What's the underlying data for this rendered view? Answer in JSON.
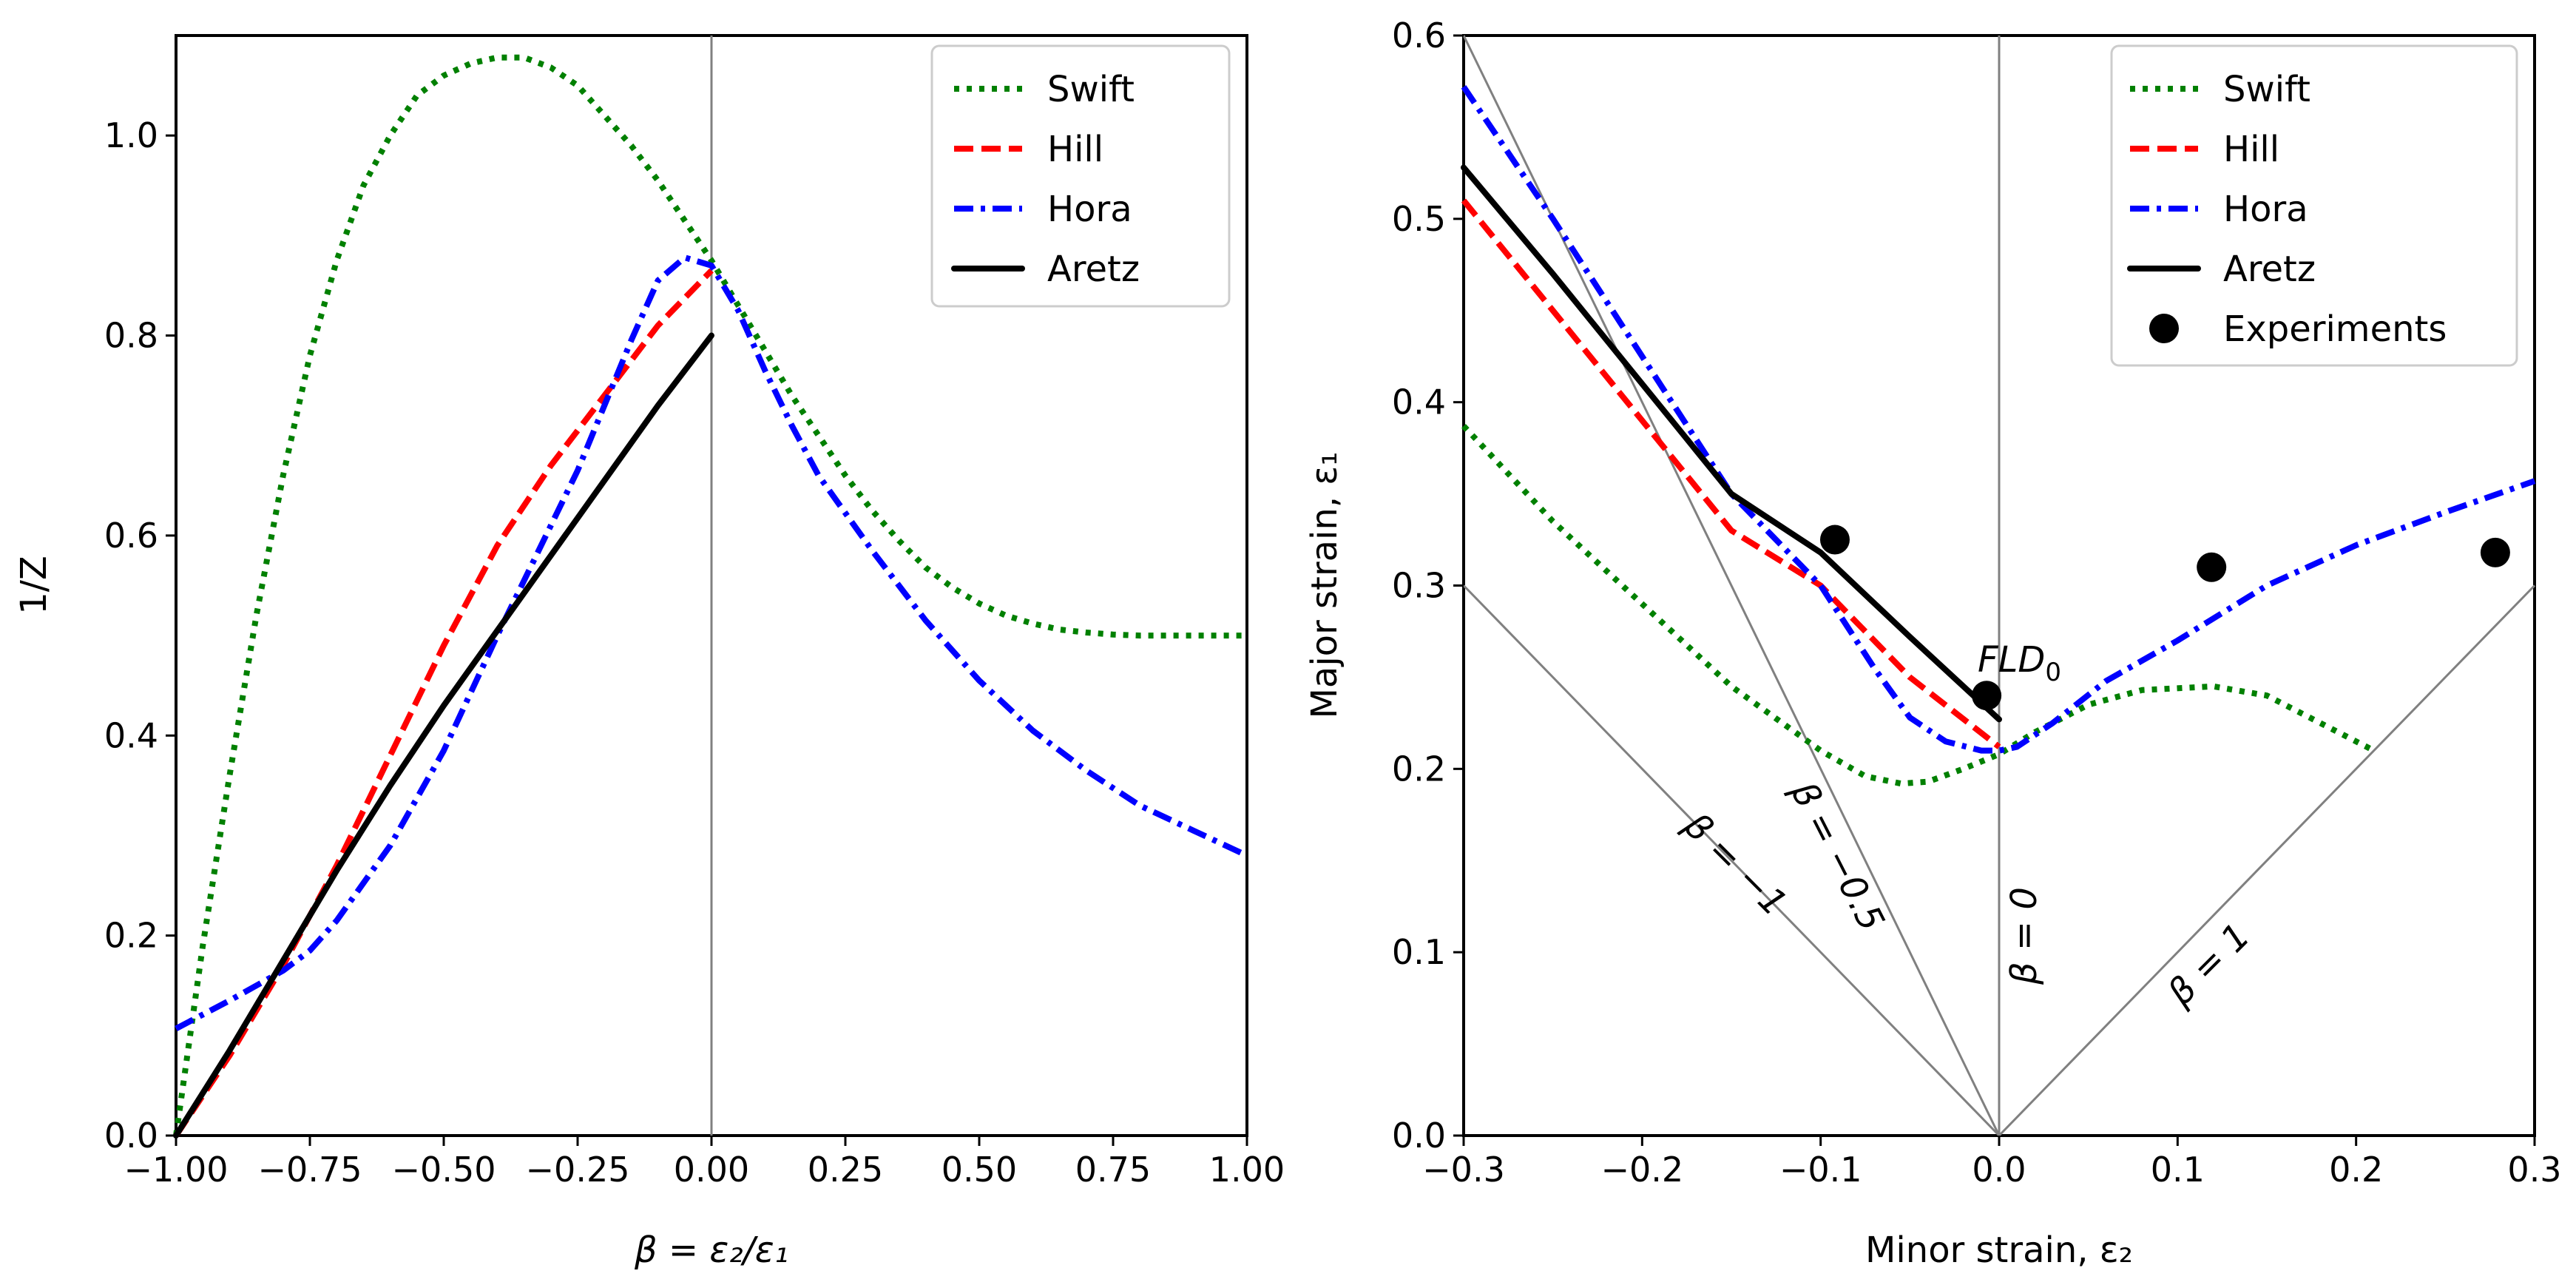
{
  "chart_data": [
    {
      "type": "line",
      "title": "",
      "xlabel": "β = ε₂/ε₁",
      "ylabel": "1/Z",
      "xlim": [
        -1.0,
        1.0
      ],
      "ylim": [
        0.0,
        1.1
      ],
      "xticks": [
        -1.0,
        -0.75,
        -0.5,
        -0.25,
        0.0,
        0.25,
        0.5,
        0.75,
        1.0
      ],
      "xtick_labels": [
        "−1.00",
        "−0.75",
        "−0.50",
        "−0.25",
        "0.00",
        "0.25",
        "0.50",
        "0.75",
        "1.00"
      ],
      "yticks": [
        0.0,
        0.2,
        0.4,
        0.6,
        0.8,
        1.0
      ],
      "ytick_labels": [
        "0.0",
        "0.2",
        "0.4",
        "0.6",
        "0.8",
        "1.0"
      ],
      "grid": false,
      "legend": "top-right",
      "vlines": [
        0.0
      ],
      "series": [
        {
          "name": "Swift",
          "color": "#008000",
          "style": "dotted",
          "x": [
            -1.0,
            -0.95,
            -0.9,
            -0.85,
            -0.8,
            -0.75,
            -0.7,
            -0.65,
            -0.6,
            -0.55,
            -0.5,
            -0.45,
            -0.4,
            -0.35,
            -0.3,
            -0.25,
            -0.2,
            -0.15,
            -0.1,
            -0.05,
            0.0,
            0.05,
            0.1,
            0.15,
            0.2,
            0.25,
            0.3,
            0.35,
            0.4,
            0.45,
            0.5,
            0.55,
            0.6,
            0.65,
            0.7,
            0.75,
            0.8,
            0.85,
            0.9,
            0.95,
            1.0
          ],
          "y": [
            0.0,
            0.19,
            0.36,
            0.52,
            0.66,
            0.78,
            0.875,
            0.95,
            1.0,
            1.04,
            1.06,
            1.072,
            1.078,
            1.078,
            1.068,
            1.05,
            1.02,
            0.99,
            0.955,
            0.915,
            0.875,
            0.83,
            0.785,
            0.74,
            0.7,
            0.66,
            0.625,
            0.595,
            0.568,
            0.548,
            0.532,
            0.52,
            0.512,
            0.506,
            0.503,
            0.501,
            0.5,
            0.5,
            0.5,
            0.5,
            0.5
          ]
        },
        {
          "name": "Hill",
          "color": "#ff0000",
          "style": "dashed",
          "x": [
            -1.0,
            -0.9,
            -0.8,
            -0.7,
            -0.6,
            -0.5,
            -0.4,
            -0.3,
            -0.2,
            -0.1,
            0.0
          ],
          "y": [
            0.0,
            0.08,
            0.17,
            0.27,
            0.38,
            0.49,
            0.59,
            0.67,
            0.74,
            0.81,
            0.865
          ]
        },
        {
          "name": "Hora",
          "color": "#0000ff",
          "style": "dashdot",
          "x": [
            -1.0,
            -0.9,
            -0.8,
            -0.75,
            -0.7,
            -0.6,
            -0.5,
            -0.4,
            -0.3,
            -0.25,
            -0.2,
            -0.15,
            -0.1,
            -0.05,
            0.0,
            0.05,
            0.1,
            0.15,
            0.2,
            0.3,
            0.4,
            0.5,
            0.6,
            0.7,
            0.8,
            0.9,
            1.0
          ],
          "y": [
            0.107,
            0.135,
            0.165,
            0.185,
            0.215,
            0.29,
            0.385,
            0.5,
            0.61,
            0.665,
            0.73,
            0.795,
            0.855,
            0.878,
            0.87,
            0.825,
            0.765,
            0.71,
            0.66,
            0.585,
            0.515,
            0.455,
            0.405,
            0.365,
            0.33,
            0.305,
            0.28
          ]
        },
        {
          "name": "Aretz",
          "color": "#000000",
          "style": "solid",
          "x": [
            -1.0,
            -0.9,
            -0.8,
            -0.7,
            -0.6,
            -0.5,
            -0.4,
            -0.3,
            -0.2,
            -0.1,
            0.0
          ],
          "y": [
            0.0,
            0.085,
            0.175,
            0.265,
            0.35,
            0.43,
            0.505,
            0.58,
            0.655,
            0.73,
            0.8
          ]
        }
      ]
    },
    {
      "type": "line",
      "title": "",
      "xlabel": "Minor strain, ε₂",
      "ylabel": "Major strain, ε₁",
      "xlim": [
        -0.3,
        0.3
      ],
      "ylim": [
        0.0,
        0.6
      ],
      "xticks": [
        -0.3,
        -0.2,
        -0.1,
        0.0,
        0.1,
        0.2,
        0.3
      ],
      "xtick_labels": [
        "−0.3",
        "−0.2",
        "−0.1",
        "0.0",
        "0.1",
        "0.2",
        "0.3"
      ],
      "yticks": [
        0.0,
        0.1,
        0.2,
        0.3,
        0.4,
        0.5,
        0.6
      ],
      "ytick_labels": [
        "0.0",
        "0.1",
        "0.2",
        "0.3",
        "0.4",
        "0.5",
        "0.6"
      ],
      "grid": false,
      "legend": "top-right",
      "vlines": [
        0.0
      ],
      "reference_lines": [
        {
          "label": "β = −1",
          "x": [
            -0.3,
            0.0
          ],
          "y": [
            0.3,
            0.0
          ]
        },
        {
          "label": "β = −0.5",
          "x": [
            -0.3,
            0.0
          ],
          "y": [
            0.6,
            0.0
          ]
        },
        {
          "label": "β = 0",
          "x": [
            0.0,
            0.0
          ],
          "y": [
            0.0,
            0.6
          ]
        },
        {
          "label": "β = 1",
          "x": [
            0.0,
            0.3
          ],
          "y": [
            0.0,
            0.3
          ]
        }
      ],
      "annotations": [
        {
          "text": "FLD",
          "subscript": "0",
          "x": -0.012,
          "y": 0.253
        }
      ],
      "series": [
        {
          "name": "Swift",
          "color": "#008000",
          "style": "dotted",
          "x": [
            -0.3,
            -0.25,
            -0.2,
            -0.15,
            -0.1,
            -0.075,
            -0.055,
            -0.04,
            -0.02,
            0.0,
            0.02,
            0.05,
            0.08,
            0.12,
            0.15,
            0.18,
            0.21
          ],
          "y": [
            0.387,
            0.335,
            0.29,
            0.245,
            0.21,
            0.196,
            0.192,
            0.193,
            0.2,
            0.208,
            0.22,
            0.235,
            0.243,
            0.245,
            0.24,
            0.225,
            0.21
          ]
        },
        {
          "name": "Hill",
          "color": "#ff0000",
          "style": "dashed",
          "x": [
            -0.3,
            -0.25,
            -0.2,
            -0.15,
            -0.1,
            -0.05,
            0.0
          ],
          "y": [
            0.51,
            0.45,
            0.39,
            0.33,
            0.3,
            0.25,
            0.212
          ]
        },
        {
          "name": "Hora",
          "color": "#0000ff",
          "style": "dashdot",
          "x": [
            -0.3,
            -0.25,
            -0.2,
            -0.15,
            -0.1,
            -0.07,
            -0.05,
            -0.03,
            -0.01,
            0.0,
            0.01,
            0.03,
            0.06,
            0.1,
            0.15,
            0.2,
            0.25,
            0.3
          ],
          "y": [
            0.572,
            0.5,
            0.425,
            0.35,
            0.3,
            0.255,
            0.228,
            0.215,
            0.21,
            0.21,
            0.212,
            0.225,
            0.248,
            0.27,
            0.3,
            0.322,
            0.34,
            0.357
          ]
        },
        {
          "name": "Aretz",
          "color": "#000000",
          "style": "solid",
          "x": [
            -0.3,
            -0.25,
            -0.2,
            -0.15,
            -0.1,
            -0.05,
            0.0
          ],
          "y": [
            0.528,
            0.47,
            0.41,
            0.35,
            0.318,
            0.272,
            0.227
          ]
        },
        {
          "name": "Experiments",
          "color": "#000000",
          "style": "markers",
          "x": [
            -0.092,
            -0.007,
            0.119,
            0.278
          ],
          "y": [
            0.325,
            0.24,
            0.31,
            0.318
          ]
        }
      ]
    }
  ]
}
